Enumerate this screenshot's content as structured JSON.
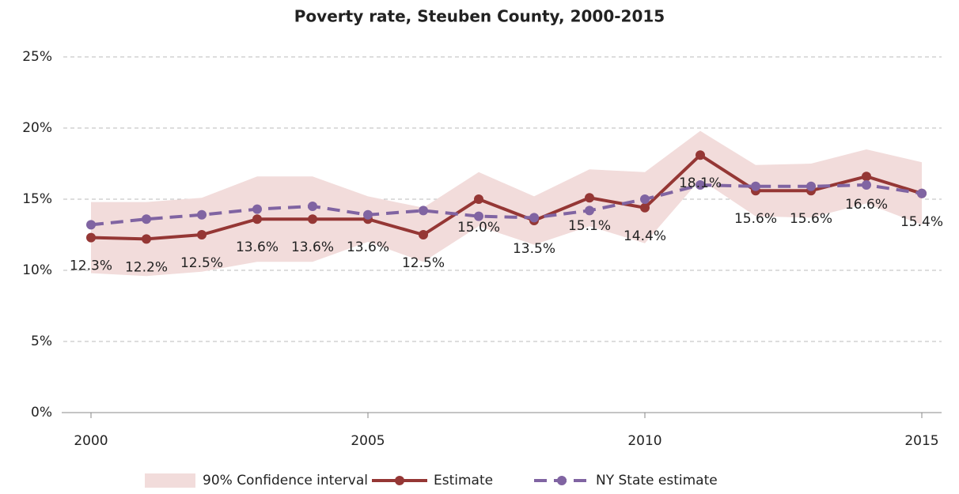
{
  "chart_data": {
    "type": "line",
    "title": "Poverty rate, Steuben County, 2000-2015",
    "x": [
      2000,
      2001,
      2002,
      2003,
      2004,
      2005,
      2006,
      2007,
      2008,
      2009,
      2010,
      2011,
      2012,
      2013,
      2014,
      2015
    ],
    "xlim": [
      1999.5,
      2015.5
    ],
    "xticks": [
      2000,
      2005,
      2010,
      2015
    ],
    "ylim": [
      0,
      25
    ],
    "yticks": [
      {
        "value": 0,
        "label": "0%"
      },
      {
        "value": 5,
        "label": "5%"
      },
      {
        "value": 10,
        "label": "10%"
      },
      {
        "value": 15,
        "label": "15%"
      },
      {
        "value": 20,
        "label": "20%"
      },
      {
        "value": 25,
        "label": "25%"
      }
    ],
    "grid": true,
    "legend": "bottom",
    "band": {
      "name": "90% Confidence interval",
      "color": "#f2dcdb",
      "upper": [
        14.8,
        14.8,
        15.1,
        16.6,
        16.6,
        15.2,
        14.4,
        16.9,
        15.2,
        17.1,
        16.9,
        19.8,
        17.4,
        17.5,
        18.5,
        17.6
      ],
      "lower": [
        9.8,
        9.6,
        9.9,
        10.6,
        10.6,
        12.0,
        10.6,
        13.1,
        11.8,
        13.1,
        11.9,
        16.4,
        13.8,
        13.7,
        14.7,
        13.2
      ]
    },
    "series": [
      {
        "name": "Estimate",
        "color": "#953735",
        "dashed": false,
        "values": [
          12.3,
          12.2,
          12.5,
          13.6,
          13.6,
          13.6,
          12.5,
          15.0,
          13.5,
          15.1,
          14.4,
          18.1,
          15.6,
          15.6,
          16.6,
          15.4
        ],
        "value_labels": [
          "12.3%",
          "12.2%",
          "12.5%",
          "13.6%",
          "13.6%",
          "13.6%",
          "12.5%",
          "15.0%",
          "13.5%",
          "15.1%",
          "14.4%",
          "18.1%",
          "15.6%",
          "15.6%",
          "16.6%",
          "15.4%"
        ]
      },
      {
        "name": "NY State estimate",
        "color": "#8064a2",
        "dashed": true,
        "values": [
          13.2,
          13.6,
          13.9,
          14.3,
          14.5,
          13.9,
          14.2,
          13.8,
          13.7,
          14.2,
          15.0,
          16.0,
          15.9,
          15.9,
          16.0,
          15.4
        ]
      }
    ]
  }
}
